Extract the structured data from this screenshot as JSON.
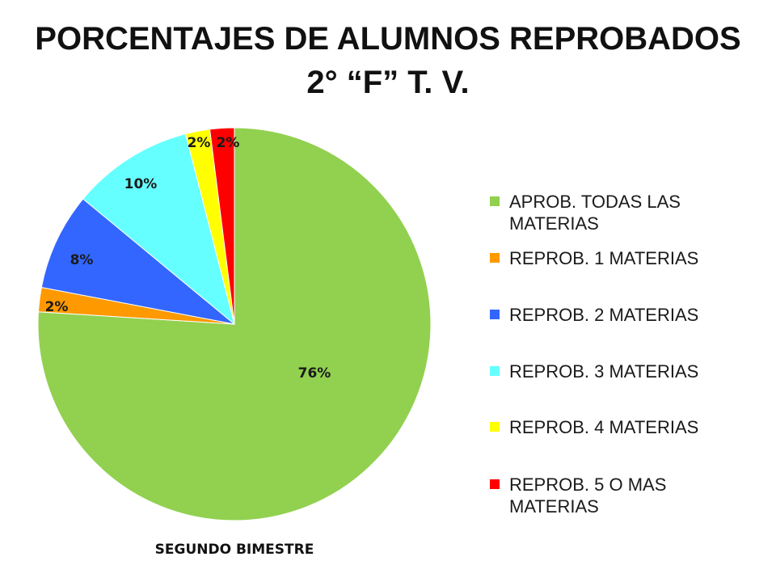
{
  "chart_data": {
    "type": "pie",
    "title": [
      "PORCENTAJES DE ALUMNOS REPROBADOS",
      "2° “F” T. V."
    ],
    "xlabel": "SEGUNDO BIMESTRE",
    "legend_placement": "right",
    "series": [
      {
        "name": "APROB. TODAS LAS MATERIAS",
        "value": 76,
        "label": "76%",
        "color": "#92D050"
      },
      {
        "name": "REPROB. 1 MATERIAS",
        "value": 2,
        "label": "2%",
        "color": "#FF9900"
      },
      {
        "name": "REPROB. 2 MATERIAS",
        "value": 8,
        "label": "8%",
        "color": "#3366FF"
      },
      {
        "name": "REPROB. 3 MATERIAS",
        "value": 10,
        "label": "10%",
        "color": "#66FFFF"
      },
      {
        "name": "REPROB. 4 MATERIAS",
        "value": 2,
        "label": "2%",
        "color": "#FFFF00"
      },
      {
        "name": "REPROB. 5 O MAS MATERIAS",
        "value": 2,
        "label": "2%",
        "color": "#FF0000"
      }
    ]
  }
}
